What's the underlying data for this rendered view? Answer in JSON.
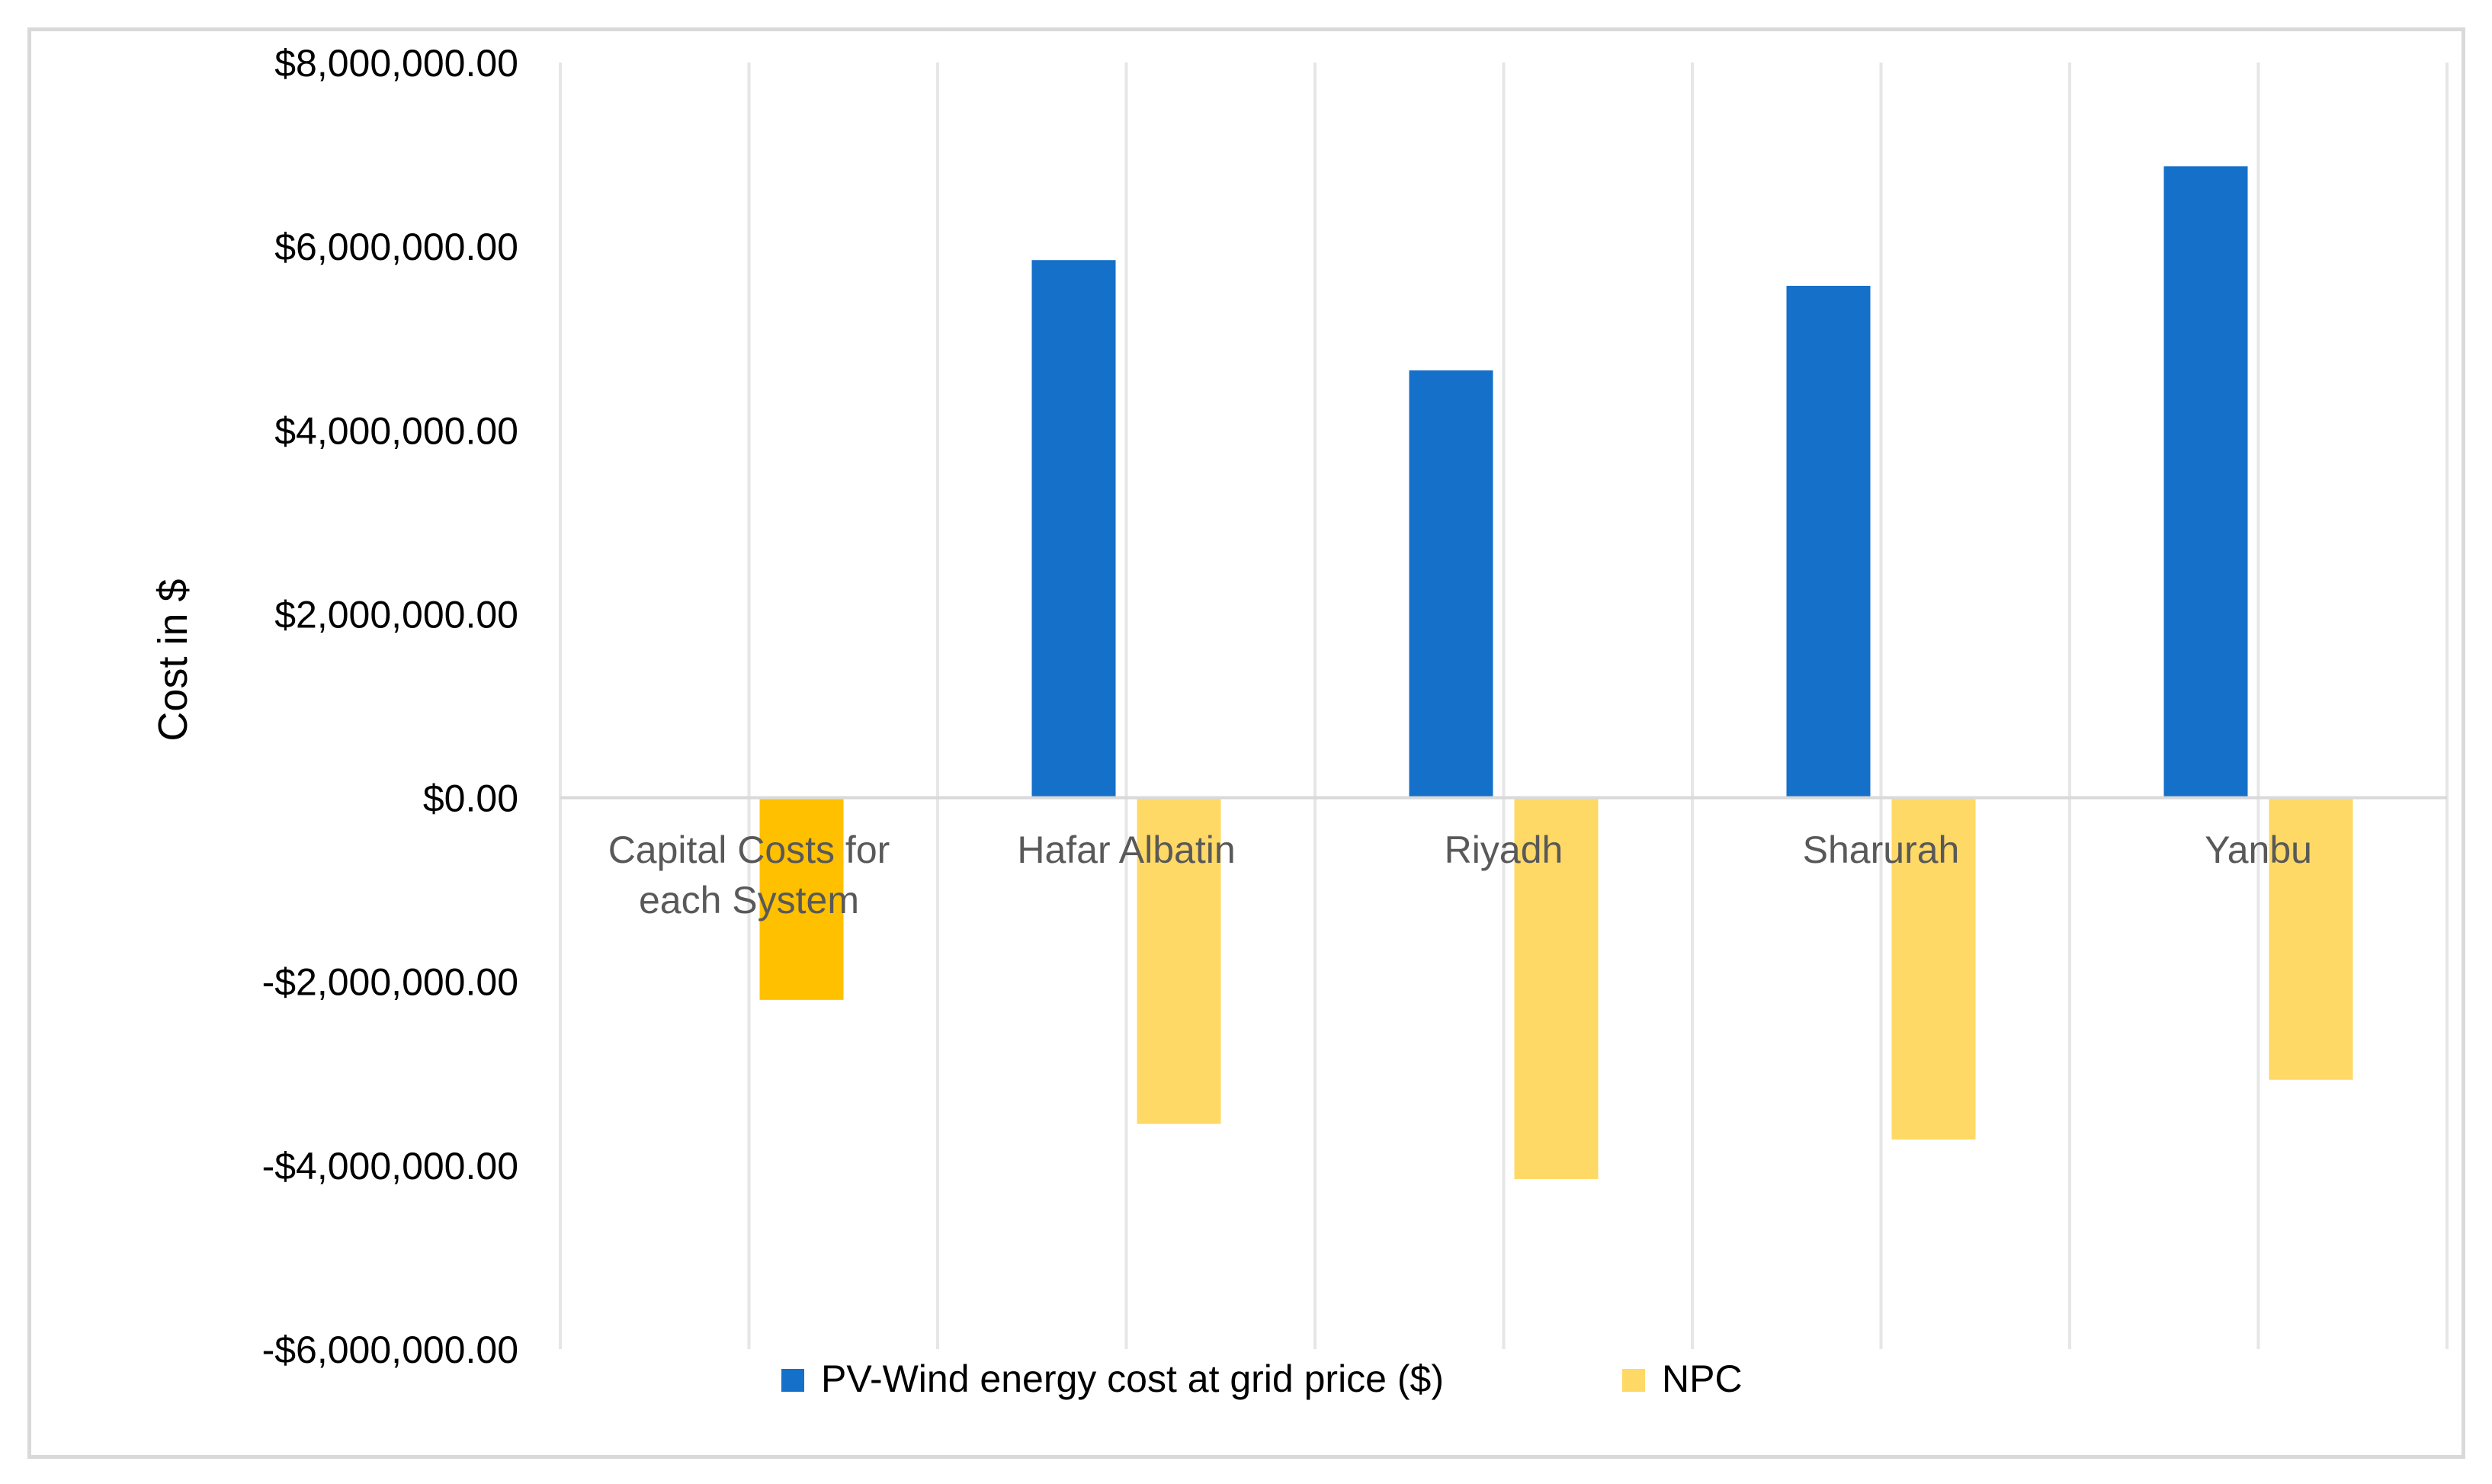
{
  "chart_data": {
    "type": "bar",
    "title": "",
    "xlabel": "",
    "ylabel": "Cost in $",
    "ylim": [
      -6000000,
      8000000
    ],
    "y_ticks": [
      8000000,
      6000000,
      4000000,
      2000000,
      0,
      -2000000,
      -4000000,
      -6000000
    ],
    "y_tick_labels": [
      "$8,000,000.00",
      "$6,000,000.00",
      "$4,000,000.00",
      "$2,000,000.00",
      "$0.00",
      "-$2,000,000.00",
      "-$4,000,000.00",
      "-$6,000,000.00"
    ],
    "categories": [
      "Capital Costs for each System",
      "Hafar Albatin",
      "Riyadh",
      "Sharurah",
      "Yanbu"
    ],
    "category_lines": [
      [
        "Capital Costs for",
        "each System"
      ],
      [
        "Hafar Albatin"
      ],
      [
        "Riyadh"
      ],
      [
        "Sharurah"
      ],
      [
        "Yanbu"
      ]
    ],
    "series": [
      {
        "name": "PV-Wind energy cost at grid price ($)",
        "color": "#1570c9",
        "values": [
          null,
          5850000,
          4650000,
          5570000,
          6870000
        ]
      },
      {
        "name": "NPC",
        "color": "#ffd966",
        "values": [
          -2200000,
          -3550000,
          -4150000,
          -3720000,
          -3070000
        ],
        "first_point_color": "#ffc000"
      }
    ],
    "grid": {
      "vertical": true,
      "horizontal": false
    },
    "legend_position": "bottom"
  }
}
